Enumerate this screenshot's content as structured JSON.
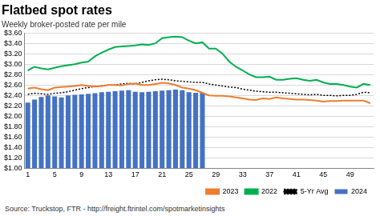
{
  "chart_data": {
    "type": "bar",
    "title": "Flatbed spot rates",
    "subtitle": "Weekly broker-posted rate per mile",
    "source": "Source: Truckstop, FTR - http://freight.ftrintel.com/spotmarketinsights",
    "categories": [
      1,
      null,
      null,
      null,
      5,
      null,
      null,
      null,
      9,
      null,
      null,
      null,
      13,
      null,
      null,
      null,
      17,
      null,
      null,
      null,
      21,
      null,
      null,
      null,
      25,
      null,
      null,
      null,
      29,
      null,
      null,
      null,
      33,
      null,
      null,
      null,
      37,
      null,
      null,
      null,
      41,
      null,
      null,
      null,
      45,
      null,
      null,
      null,
      49,
      null,
      null,
      null
    ],
    "series": [
      {
        "name": "2024",
        "type": "bar",
        "color": "#4472c4",
        "values": [
          2.26,
          2.32,
          2.37,
          2.4,
          2.38,
          2.36,
          2.4,
          2.41,
          2.42,
          2.43,
          2.44,
          2.46,
          2.47,
          2.48,
          2.49,
          2.5,
          2.47,
          2.46,
          2.47,
          2.48,
          2.49,
          2.5,
          2.51,
          2.5,
          2.46,
          2.45,
          2.45,
          null,
          null,
          null,
          null,
          null,
          null,
          null,
          null,
          null,
          null,
          null,
          null,
          null,
          null,
          null,
          null,
          null,
          null,
          null,
          null,
          null,
          null,
          null,
          null,
          null
        ]
      },
      {
        "name": "2023",
        "type": "line",
        "color": "#ed7d31",
        "line_style": "solid",
        "values": [
          2.53,
          2.55,
          2.52,
          2.5,
          2.55,
          2.56,
          2.57,
          2.58,
          2.6,
          2.58,
          2.57,
          2.58,
          2.6,
          2.6,
          2.59,
          2.62,
          2.63,
          2.6,
          2.6,
          2.62,
          2.64,
          2.63,
          2.6,
          2.55,
          2.53,
          2.5,
          2.45,
          2.4,
          2.39,
          2.39,
          2.38,
          2.36,
          2.34,
          2.32,
          2.31,
          2.34,
          2.33,
          2.36,
          2.34,
          2.33,
          2.32,
          2.32,
          2.31,
          2.3,
          2.28,
          2.29,
          2.29,
          2.3,
          2.3,
          2.3,
          2.3,
          2.25
        ]
      },
      {
        "name": "2022",
        "type": "line",
        "color": "#00b050",
        "line_style": "solid",
        "values": [
          2.88,
          2.95,
          2.92,
          2.9,
          2.93,
          2.96,
          2.98,
          3.0,
          3.03,
          3.05,
          3.15,
          3.22,
          3.28,
          3.33,
          3.34,
          3.35,
          3.36,
          3.38,
          3.37,
          3.4,
          3.5,
          3.52,
          3.53,
          3.52,
          3.45,
          3.4,
          3.42,
          3.3,
          3.3,
          3.2,
          3.05,
          2.95,
          2.88,
          2.8,
          2.75,
          2.75,
          2.76,
          2.7,
          2.7,
          2.72,
          2.73,
          2.7,
          2.68,
          2.7,
          2.65,
          2.62,
          2.62,
          2.6,
          2.57,
          2.55,
          2.62,
          2.6
        ]
      },
      {
        "name": "5-Yr Avg",
        "type": "line",
        "color": "#000000",
        "line_style": "dotted",
        "values": [
          2.42,
          2.44,
          2.43,
          2.42,
          2.44,
          2.45,
          2.47,
          2.5,
          2.53,
          2.55,
          2.57,
          2.58,
          2.6,
          2.6,
          2.62,
          2.63,
          2.62,
          2.65,
          2.68,
          2.7,
          2.71,
          2.7,
          2.68,
          2.67,
          2.66,
          2.65,
          2.65,
          2.62,
          2.6,
          2.58,
          2.56,
          2.55,
          2.52,
          2.5,
          2.48,
          2.47,
          2.46,
          2.46,
          2.45,
          2.44,
          2.43,
          2.42,
          2.41,
          2.42,
          2.4,
          2.4,
          2.39,
          2.4,
          2.4,
          2.42,
          2.46,
          2.45
        ]
      }
    ],
    "ylim": [
      1.0,
      3.6
    ],
    "yticks": [
      {
        "value": 1.0,
        "label": "$1.00"
      },
      {
        "value": 1.2,
        "label": "$1.20"
      },
      {
        "value": 1.4,
        "label": "$1.40"
      },
      {
        "value": 1.6,
        "label": "$1.60"
      },
      {
        "value": 1.8,
        "label": "$1.80"
      },
      {
        "value": 2.0,
        "label": "$2.00"
      },
      {
        "value": 2.2,
        "label": "$2.20"
      },
      {
        "value": 2.4,
        "label": "$2.40"
      },
      {
        "value": 2.6,
        "label": "$2.60"
      },
      {
        "value": 2.8,
        "label": "$2.80"
      },
      {
        "value": 3.0,
        "label": "$3.00"
      },
      {
        "value": 3.2,
        "label": "$3.20"
      },
      {
        "value": 3.4,
        "label": "$3.40"
      },
      {
        "value": 3.6,
        "label": "$3.60"
      }
    ],
    "grid": "y",
    "legend": "bottom"
  }
}
